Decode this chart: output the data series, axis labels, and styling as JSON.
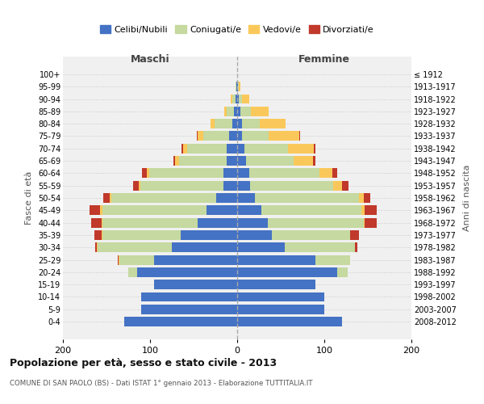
{
  "age_groups": [
    "0-4",
    "5-9",
    "10-14",
    "15-19",
    "20-24",
    "25-29",
    "30-34",
    "35-39",
    "40-44",
    "45-49",
    "50-54",
    "55-59",
    "60-64",
    "65-69",
    "70-74",
    "75-79",
    "80-84",
    "85-89",
    "90-94",
    "95-99",
    "100+"
  ],
  "birth_years": [
    "2008-2012",
    "2003-2007",
    "1998-2002",
    "1993-1997",
    "1988-1992",
    "1983-1987",
    "1978-1982",
    "1973-1977",
    "1968-1972",
    "1963-1967",
    "1958-1962",
    "1953-1957",
    "1948-1952",
    "1943-1947",
    "1938-1942",
    "1933-1937",
    "1928-1932",
    "1923-1927",
    "1918-1922",
    "1913-1917",
    "≤ 1912"
  ],
  "male_celibi": [
    130,
    110,
    110,
    95,
    115,
    95,
    75,
    65,
    45,
    35,
    24,
    16,
    16,
    12,
    12,
    9,
    6,
    4,
    2,
    1,
    0
  ],
  "male_coniugati": [
    0,
    0,
    0,
    0,
    10,
    40,
    85,
    90,
    110,
    120,
    120,
    95,
    85,
    55,
    45,
    30,
    20,
    8,
    4,
    1,
    0
  ],
  "male_vedovi": [
    0,
    0,
    0,
    0,
    0,
    1,
    1,
    1,
    1,
    2,
    2,
    2,
    3,
    4,
    5,
    6,
    5,
    3,
    1,
    0,
    0
  ],
  "male_divorziati": [
    0,
    0,
    0,
    0,
    0,
    1,
    2,
    8,
    12,
    12,
    8,
    6,
    5,
    2,
    2,
    1,
    0,
    0,
    0,
    0,
    0
  ],
  "female_celibi": [
    120,
    100,
    100,
    90,
    115,
    90,
    55,
    40,
    35,
    28,
    20,
    15,
    14,
    10,
    8,
    6,
    6,
    4,
    2,
    1,
    0
  ],
  "female_coniugati": [
    0,
    0,
    0,
    0,
    12,
    40,
    80,
    90,
    110,
    115,
    120,
    95,
    80,
    55,
    50,
    30,
    20,
    12,
    4,
    1,
    0
  ],
  "female_vedovi": [
    0,
    0,
    0,
    0,
    0,
    0,
    0,
    0,
    1,
    3,
    5,
    10,
    15,
    22,
    30,
    35,
    30,
    20,
    8,
    2,
    0
  ],
  "female_divorziati": [
    0,
    0,
    0,
    0,
    0,
    0,
    3,
    10,
    14,
    14,
    8,
    8,
    6,
    3,
    2,
    1,
    0,
    0,
    0,
    0,
    0
  ],
  "colors": {
    "celibi": "#4472c4",
    "coniugati": "#c5d9a0",
    "vedovi": "#fac85a",
    "divorziati": "#c0392b"
  },
  "xlim": 200,
  "title": "Popolazione per età, sesso e stato civile - 2013",
  "subtitle": "COMUNE DI SAN PAOLO (BS) - Dati ISTAT 1° gennaio 2013 - Elaborazione TUTTITALIA.IT",
  "xlabel_left": "Maschi",
  "xlabel_right": "Femmine",
  "ylabel_left": "Fasce di età",
  "ylabel_right": "Anni di nascita",
  "legend_labels": [
    "Celibi/Nubili",
    "Coniugati/e",
    "Vedovi/e",
    "Divorziati/e"
  ],
  "background_color": "#f0f0f0"
}
